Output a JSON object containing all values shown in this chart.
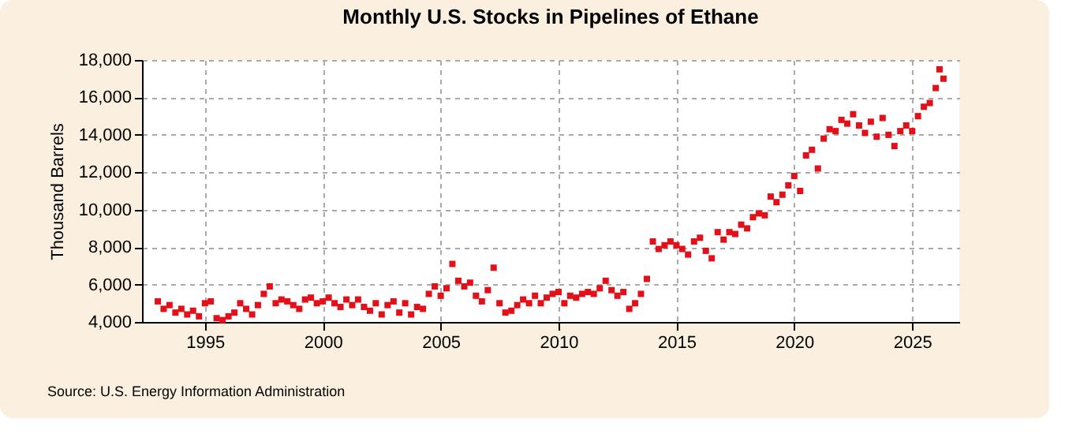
{
  "chart_data": {
    "type": "scatter",
    "title": "Monthly U.S. Stocks in Pipelines of Ethane",
    "ylabel": "Thousand Barrels",
    "annotations": [
      "Source: U.S. Energy Information Administration"
    ],
    "x": [
      "1993-01",
      "1993-04",
      "1993-07",
      "1993-10",
      "1994-01",
      "1994-04",
      "1994-07",
      "1994-10",
      "1995-01",
      "1995-04",
      "1995-07",
      "1995-10",
      "1996-01",
      "1996-04",
      "1996-07",
      "1996-10",
      "1997-01",
      "1997-04",
      "1997-07",
      "1997-10",
      "1998-01",
      "1998-04",
      "1998-07",
      "1998-10",
      "1999-01",
      "1999-04",
      "1999-07",
      "1999-10",
      "2000-01",
      "2000-04",
      "2000-07",
      "2000-10",
      "2001-01",
      "2001-04",
      "2001-07",
      "2001-10",
      "2002-01",
      "2002-04",
      "2002-07",
      "2002-10",
      "2003-01",
      "2003-04",
      "2003-07",
      "2003-10",
      "2004-01",
      "2004-04",
      "2004-07",
      "2004-10",
      "2005-01",
      "2005-04",
      "2005-07",
      "2005-10",
      "2006-01",
      "2006-04",
      "2006-07",
      "2006-10",
      "2007-01",
      "2007-04",
      "2007-07",
      "2007-10",
      "2008-01",
      "2008-04",
      "2008-07",
      "2008-10",
      "2009-01",
      "2009-04",
      "2009-07",
      "2009-10",
      "2010-01",
      "2010-04",
      "2010-07",
      "2010-10",
      "2011-01",
      "2011-04",
      "2011-07",
      "2011-10",
      "2012-01",
      "2012-04",
      "2012-07",
      "2012-10",
      "2013-01",
      "2013-04",
      "2013-07",
      "2013-10",
      "2014-01",
      "2014-04",
      "2014-07",
      "2014-10",
      "2015-01",
      "2015-04",
      "2015-07",
      "2015-10",
      "2016-01",
      "2016-04",
      "2016-07",
      "2016-10",
      "2017-01",
      "2017-04",
      "2017-07",
      "2017-10",
      "2018-01",
      "2018-04",
      "2018-07",
      "2018-10",
      "2019-01",
      "2019-04",
      "2019-07",
      "2019-10",
      "2020-01",
      "2020-04",
      "2020-07",
      "2020-10",
      "2021-01",
      "2021-04",
      "2021-07",
      "2021-10",
      "2022-01",
      "2022-04",
      "2022-07",
      "2022-10",
      "2023-01",
      "2023-04",
      "2023-07",
      "2023-10",
      "2024-01",
      "2024-04",
      "2024-07",
      "2024-10",
      "2025-01",
      "2025-04",
      "2025-07",
      "2025-10",
      "2026-01",
      "2026-03",
      "2026-05"
    ],
    "series": [
      {
        "color": "#e3101a",
        "values": [
          5100,
          4700,
          4900,
          4500,
          4700,
          4400,
          4600,
          4300,
          5000,
          5100,
          4200,
          4100,
          4300,
          4500,
          5000,
          4700,
          4400,
          4900,
          5500,
          5900,
          5000,
          5200,
          5100,
          4900,
          4700,
          5200,
          5300,
          5000,
          5100,
          5300,
          5000,
          4800,
          5200,
          4900,
          5200,
          4800,
          4600,
          5000,
          4400,
          4900,
          5100,
          4500,
          5000,
          4400,
          4800,
          4700,
          5500,
          5900,
          5400,
          5800,
          7100,
          6200,
          5900,
          6100,
          5400,
          5100,
          5700,
          6900,
          5000,
          4500,
          4600,
          4900,
          5200,
          5000,
          5400,
          5000,
          5300,
          5500,
          5600,
          5000,
          5400,
          5300,
          5500,
          5600,
          5500,
          5800,
          6200,
          5700,
          5400,
          5600,
          4700,
          5000,
          5500,
          6300,
          8300,
          7900,
          8100,
          8300,
          8100,
          7900,
          7600,
          8300,
          8500,
          7800,
          7400,
          8800,
          8400,
          8800,
          8700,
          9200,
          9000,
          9600,
          9800,
          9700,
          10700,
          10400,
          10800,
          11300,
          11800,
          11000,
          12900,
          13200,
          12200,
          13800,
          14300,
          14200,
          14800,
          14600,
          15100,
          14500,
          14100,
          14700,
          13900,
          14900,
          14000,
          13400,
          14200,
          14500,
          14200,
          15000,
          15500,
          15700,
          16500,
          17500,
          17000
        ]
      }
    ],
    "xlim": [
      "1992-05",
      "2027-01"
    ],
    "xticks": [
      {
        "value": "1995",
        "label": "1995"
      },
      {
        "value": "2000",
        "label": "2000"
      },
      {
        "value": "2005",
        "label": "2005"
      },
      {
        "value": "2010",
        "label": "2010"
      },
      {
        "value": "2015",
        "label": "2015"
      },
      {
        "value": "2020",
        "label": "2020"
      },
      {
        "value": "2025",
        "label": "2025"
      }
    ],
    "ylim": [
      4000,
      18000
    ],
    "yticks": [
      {
        "value": 4000,
        "label": "4,000"
      },
      {
        "value": 6000,
        "label": "6,000"
      },
      {
        "value": 8000,
        "label": "8,000"
      },
      {
        "value": 10000,
        "label": "10,000"
      },
      {
        "value": 12000,
        "label": "12,000"
      },
      {
        "value": 14000,
        "label": "14,000"
      },
      {
        "value": 16000,
        "label": "16,000"
      },
      {
        "value": 18000,
        "label": "18,000"
      }
    ],
    "grid": true,
    "marker": "square"
  }
}
